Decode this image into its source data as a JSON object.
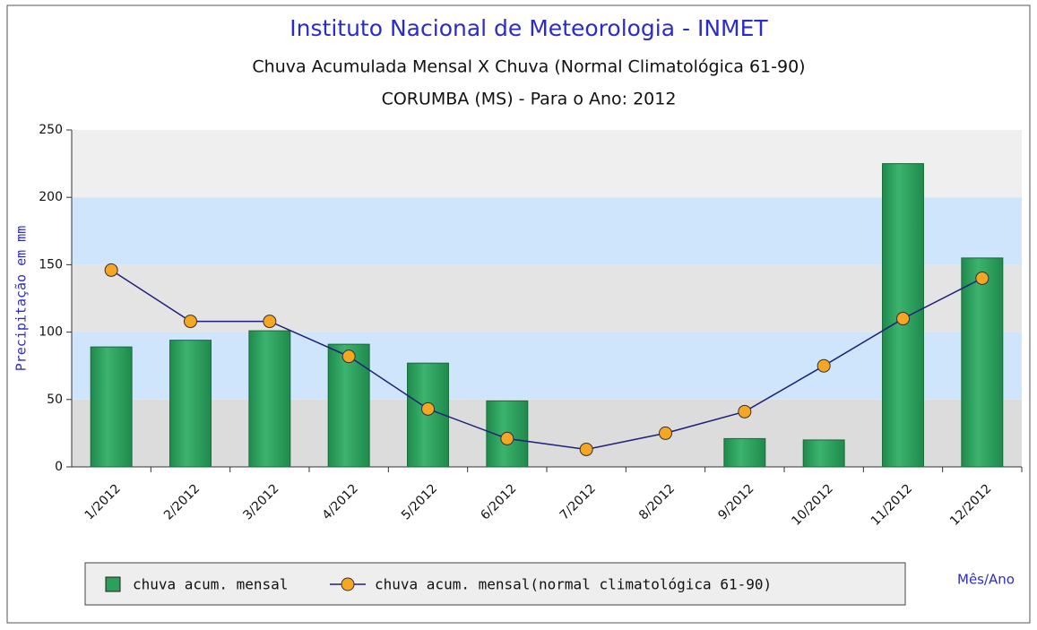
{
  "chart_data": {
    "type": "bar",
    "title": "Instituto Nacional de Meteorologia - INMET",
    "subtitle": "Chuva Acumulada Mensal X Chuva (Normal Climatológica 61-90)",
    "subtitle2": "CORUMBA (MS) - Para o Ano: 2012",
    "y_label": "Precipitação em mm",
    "x_label": "Mês/Ano",
    "categories": [
      "1/2012",
      "2/2012",
      "3/2012",
      "4/2012",
      "5/2012",
      "6/2012",
      "7/2012",
      "8/2012",
      "9/2012",
      "10/2012",
      "11/2012",
      "12/2012"
    ],
    "series": [
      {
        "name": "chuva acum. mensal",
        "type": "bar",
        "color": "#2e9e5b",
        "values": [
          89,
          94,
          101,
          91,
          77,
          49,
          null,
          null,
          21,
          20,
          225,
          155
        ]
      },
      {
        "name": "chuva acum. mensal(normal climatológica 61-90)",
        "type": "line",
        "color": "#1f1f7a",
        "marker_color": "#f5a623",
        "values": [
          146,
          108,
          108,
          82,
          43,
          21,
          13,
          25,
          41,
          75,
          110,
          140
        ]
      }
    ],
    "ylim": [
      0,
      250
    ],
    "yticks": [
      0,
      50,
      100,
      150,
      200,
      250
    ],
    "legend": "bottom"
  }
}
